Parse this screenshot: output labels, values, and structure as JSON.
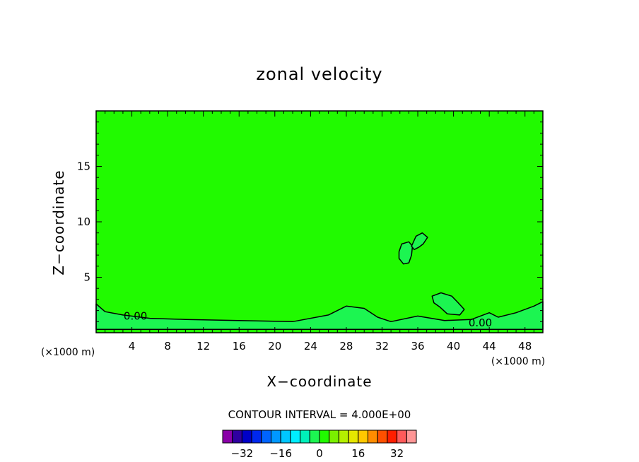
{
  "chart_data": {
    "type": "heatmap",
    "title": "zonal velocity",
    "xlabel": "X−coordinate",
    "ylabel": "Z−coordinate",
    "x_unit": "(×1000 m)",
    "xlim": [
      0,
      50
    ],
    "ylim": [
      0,
      20
    ],
    "x_ticks": [
      {
        "v": 4,
        "label": "4"
      },
      {
        "v": 8,
        "label": "8"
      },
      {
        "v": 12,
        "label": "12"
      },
      {
        "v": 16,
        "label": "16"
      },
      {
        "v": 20,
        "label": "20"
      },
      {
        "v": 24,
        "label": "24"
      },
      {
        "v": 28,
        "label": "28"
      },
      {
        "v": 32,
        "label": "32"
      },
      {
        "v": 36,
        "label": "36"
      },
      {
        "v": 40,
        "label": "40"
      },
      {
        "v": 44,
        "label": "44"
      },
      {
        "v": 48,
        "label": "48"
      }
    ],
    "y_ticks": [
      {
        "v": 5,
        "label": "5"
      },
      {
        "v": 10,
        "label": "10"
      },
      {
        "v": 15,
        "label": "15"
      }
    ],
    "background_value": 0,
    "background_color": "#21fa00",
    "regions": [
      {
        "value": 4,
        "color": "#1cf551",
        "points": [
          [
            0,
            2.6
          ],
          [
            1,
            1.9
          ],
          [
            3,
            1.6
          ],
          [
            6,
            1.3
          ],
          [
            10,
            1.2
          ],
          [
            16,
            1.1
          ],
          [
            22,
            1.0
          ],
          [
            26,
            1.6
          ],
          [
            28,
            2.4
          ],
          [
            30,
            2.2
          ],
          [
            31.5,
            1.4
          ],
          [
            33,
            1.0
          ],
          [
            36,
            1.5
          ],
          [
            39,
            1.1
          ],
          [
            42,
            1.2
          ],
          [
            44,
            1.8
          ],
          [
            45,
            1.4
          ],
          [
            47,
            1.8
          ],
          [
            49,
            2.4
          ],
          [
            50,
            2.8
          ],
          [
            50,
            0.3
          ],
          [
            0,
            0.3
          ]
        ]
      },
      {
        "value": 4,
        "color": "#1cf551",
        "points": [
          [
            33.9,
            7.3
          ],
          [
            34.2,
            8.0
          ],
          [
            35.0,
            8.2
          ],
          [
            35.4,
            7.8
          ],
          [
            35.3,
            7.0
          ],
          [
            35.0,
            6.3
          ],
          [
            34.4,
            6.2
          ],
          [
            33.9,
            6.7
          ]
        ]
      },
      {
        "value": 4,
        "color": "#1cf551",
        "points": [
          [
            35.3,
            7.8
          ],
          [
            35.8,
            8.7
          ],
          [
            36.5,
            9.0
          ],
          [
            37.1,
            8.6
          ],
          [
            36.6,
            8.0
          ],
          [
            36.1,
            7.7
          ],
          [
            35.6,
            7.5
          ]
        ]
      },
      {
        "value": 4,
        "color": "#1cf551",
        "points": [
          [
            37.6,
            3.3
          ],
          [
            38.6,
            3.6
          ],
          [
            39.8,
            3.3
          ],
          [
            40.4,
            2.8
          ],
          [
            41.2,
            2.1
          ],
          [
            40.7,
            1.6
          ],
          [
            39.3,
            1.7
          ],
          [
            38.5,
            2.3
          ],
          [
            37.8,
            2.7
          ]
        ]
      }
    ],
    "contour_labels": [
      {
        "x": 4.4,
        "y": 1.5,
        "text": "0.00"
      },
      {
        "x": 43.0,
        "y": 0.9,
        "text": "0.00"
      }
    ],
    "contour_interval_text": "CONTOUR INTERVAL = 4.000E+00",
    "colorbar": {
      "colors": [
        "#8a00a8",
        "#2f00a0",
        "#0000c8",
        "#0028ee",
        "#0064ff",
        "#0098ff",
        "#00c6ff",
        "#00eeff",
        "#00f0ba",
        "#1cf551",
        "#21fa00",
        "#7af000",
        "#b4f000",
        "#e6e600",
        "#ffc800",
        "#ff8c00",
        "#ff5000",
        "#ff1e00",
        "#ff5a5a",
        "#ff9696"
      ],
      "ticks": [
        {
          "value": -32,
          "label": "−32"
        },
        {
          "value": -16,
          "label": "−16"
        },
        {
          "value": 0,
          "label": "0"
        },
        {
          "value": 16,
          "label": "16"
        },
        {
          "value": 32,
          "label": "32"
        }
      ],
      "min": -40,
      "max": 40
    }
  }
}
